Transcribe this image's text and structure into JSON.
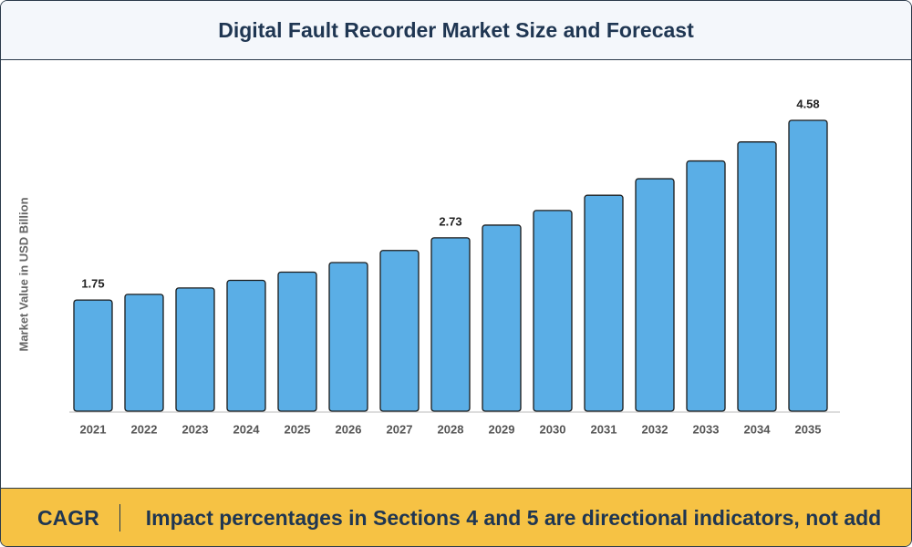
{
  "chart_data": {
    "type": "bar",
    "title": "Digital Fault Recorder Market Size and Forecast",
    "y_label": "Market Value in USD Billion",
    "categories": [
      "2021",
      "2022",
      "2023",
      "2024",
      "2025",
      "2026",
      "2027",
      "2028",
      "2029",
      "2030",
      "2031",
      "2032",
      "2033",
      "2034",
      "2035"
    ],
    "values": [
      1.75,
      1.84,
      1.94,
      2.06,
      2.19,
      2.34,
      2.53,
      2.73,
      2.93,
      3.16,
      3.4,
      3.66,
      3.94,
      4.24,
      4.58
    ],
    "value_labels": [
      "1.75",
      null,
      null,
      null,
      null,
      null,
      null,
      "2.73",
      null,
      null,
      null,
      null,
      null,
      null,
      "4.58"
    ],
    "color": "#5aaee6"
  },
  "footer": {
    "label": "CAGR",
    "text": "Impact percentages in Sections 4 and 5 are directional indicators, not add"
  }
}
